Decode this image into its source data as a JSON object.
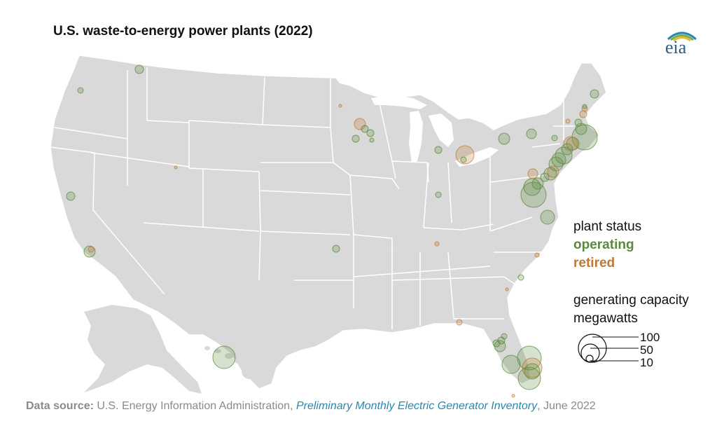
{
  "title": "U.S. waste-to-energy power plants (2022)",
  "logo_text": "eia",
  "legend": {
    "status_title": "plant status",
    "statuses": [
      "operating",
      "retired"
    ],
    "capacity_title_line1": "generating capacity",
    "capacity_title_line2": "megawatts",
    "size_labels": [
      "100",
      "50",
      "10"
    ],
    "size_values_mw": [
      100,
      50,
      10
    ]
  },
  "source": {
    "label": "Data source:",
    "org": "U.S. Energy Information Administration,",
    "publication": "Preliminary Monthly Electric Generator Inventory",
    "date": ", June 2022"
  },
  "colors": {
    "land": "#d9d9d9",
    "border": "#ffffff",
    "operating": "#5a8a3c",
    "retired": "#c07832",
    "text": "#111111",
    "source": "#8a8a8a",
    "link": "#2a88b0"
  }
}
